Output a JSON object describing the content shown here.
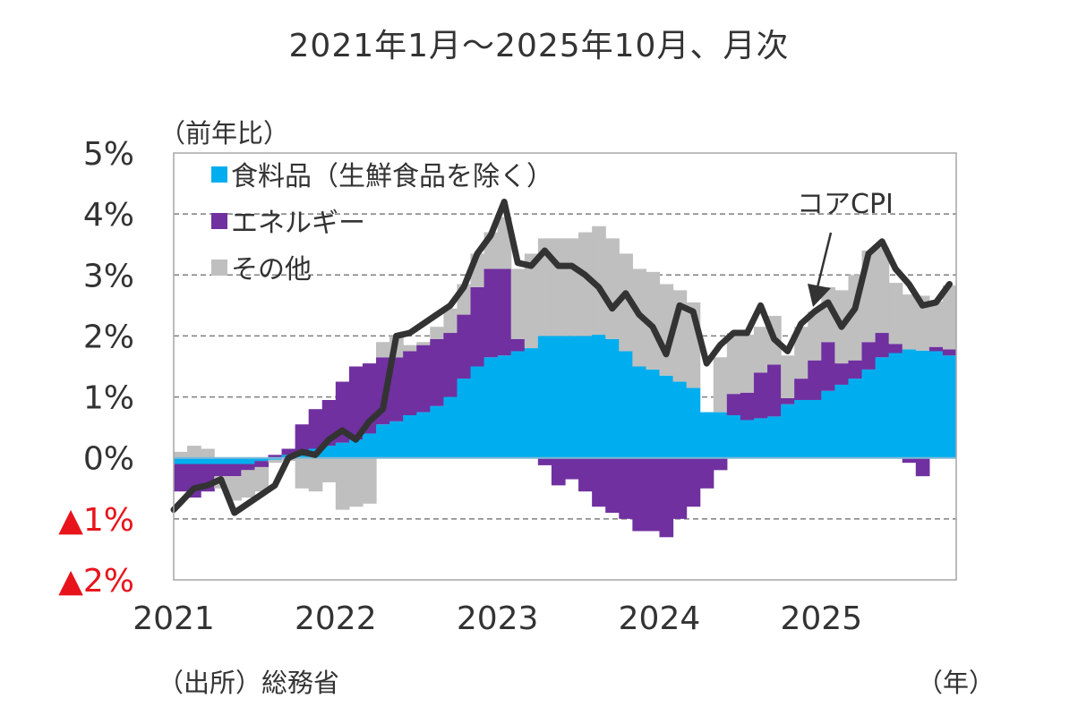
{
  "title": "2021年1月～2025年10月、月次",
  "y_unit_label": "（前年比）",
  "source_label": "（出所）総務省",
  "x_unit_label": "（年）",
  "colors": {
    "food": "#00aeef",
    "energy": "#7030a0",
    "other": "#bfbfbf",
    "core_cpi": "#333333",
    "negative_tick": "#e8141c",
    "grid": "#7f7f7f"
  },
  "chart_data": {
    "type": "bar",
    "stacked": true,
    "title": "2021年1月～2025年10月、月次",
    "xlabel": "（年）",
    "ylabel": "（前年比）",
    "ylim": [
      -2,
      5
    ],
    "grid": true,
    "legend_position": "top-left",
    "y_ticks": [
      {
        "value": 5,
        "label": "5%"
      },
      {
        "value": 4,
        "label": "4%"
      },
      {
        "value": 3,
        "label": "3%"
      },
      {
        "value": 2,
        "label": "2%"
      },
      {
        "value": 1,
        "label": "1%"
      },
      {
        "value": 0,
        "label": "0%"
      },
      {
        "value": -1,
        "label": "▲1%"
      },
      {
        "value": -2,
        "label": "▲2%"
      }
    ],
    "x_ticks": [
      {
        "index": 0,
        "label": "2021"
      },
      {
        "index": 12,
        "label": "2022"
      },
      {
        "index": 24,
        "label": "2023"
      },
      {
        "index": 36,
        "label": "2024"
      },
      {
        "index": 48,
        "label": "2025"
      }
    ],
    "months": 58,
    "series": [
      {
        "name": "食料品（生鮮食品を除く）",
        "key": "food",
        "kind": "bar",
        "values": [
          -0.1,
          -0.1,
          -0.1,
          -0.1,
          -0.1,
          -0.1,
          -0.05,
          -0.03,
          0.05,
          0.1,
          0.15,
          0.2,
          0.25,
          0.3,
          0.4,
          0.55,
          0.6,
          0.7,
          0.75,
          0.85,
          1.0,
          1.3,
          1.5,
          1.65,
          1.68,
          1.75,
          1.8,
          2.0,
          2.0,
          2.0,
          2.0,
          2.02,
          1.95,
          1.75,
          1.5,
          1.45,
          1.35,
          1.25,
          1.15,
          0.75,
          0.75,
          0.7,
          0.62,
          0.65,
          0.68,
          0.88,
          0.95,
          0.95,
          1.1,
          1.2,
          1.3,
          1.45,
          1.65,
          1.72,
          1.78,
          1.76,
          1.75,
          1.68
        ]
      },
      {
        "name": "エネルギー",
        "key": "energy",
        "kind": "bar",
        "values": [
          -0.45,
          -0.55,
          -0.45,
          -0.2,
          -0.2,
          -0.1,
          -0.1,
          0.05,
          0.1,
          0.45,
          0.65,
          0.75,
          1.0,
          1.2,
          1.15,
          1.1,
          1.05,
          1.05,
          1.1,
          1.1,
          1.05,
          1.05,
          1.3,
          1.45,
          1.42,
          0.2,
          -0.0,
          -0.12,
          -0.45,
          -0.35,
          -0.55,
          -0.8,
          -0.9,
          -1.0,
          -1.2,
          -1.2,
          -1.3,
          -1.0,
          -0.8,
          -0.5,
          -0.2,
          0.35,
          0.45,
          0.75,
          0.85,
          0.1,
          0.35,
          0.65,
          0.8,
          0.35,
          0.3,
          0.45,
          0.4,
          0.15,
          -0.08,
          -0.3,
          0.07,
          0.1
        ]
      },
      {
        "name": "その他",
        "key": "other",
        "kind": "bar",
        "values": [
          0.1,
          0.2,
          0.15,
          -0.2,
          -0.4,
          -0.45,
          -0.4,
          -0.05,
          -0.05,
          -0.5,
          -0.55,
          -0.4,
          -0.85,
          -0.8,
          -0.75,
          0.25,
          0.35,
          0.1,
          0.05,
          0.2,
          0.4,
          0.5,
          0.55,
          0.6,
          0.85,
          1.15,
          1.55,
          1.6,
          1.6,
          1.6,
          1.7,
          1.78,
          1.65,
          1.6,
          1.6,
          1.6,
          1.5,
          1.5,
          1.4,
          0.0,
          0.9,
          1.0,
          0.95,
          0.75,
          0.8,
          0.7,
          0.85,
          0.8,
          0.9,
          1.2,
          1.4,
          1.5,
          1.4,
          1.0,
          0.9,
          0.9,
          0.75,
          1.05
        ]
      },
      {
        "name": "コアCPI",
        "key": "core_cpi",
        "kind": "line",
        "values": [
          -0.85,
          -0.5,
          -0.45,
          -0.35,
          -0.9,
          -0.75,
          -0.6,
          -0.45,
          0.0,
          0.1,
          0.05,
          0.3,
          0.45,
          0.3,
          0.6,
          0.8,
          2.0,
          2.05,
          2.2,
          2.35,
          2.5,
          2.8,
          3.35,
          3.65,
          4.2,
          3.2,
          3.15,
          3.4,
          3.15,
          3.15,
          3.0,
          2.8,
          2.45,
          2.7,
          2.35,
          2.15,
          1.7,
          2.5,
          2.4,
          1.55,
          1.85,
          2.05,
          2.05,
          2.5,
          1.95,
          1.75,
          2.2,
          2.4,
          2.55,
          2.15,
          2.45,
          3.35,
          3.55,
          3.1,
          2.85,
          2.5,
          2.55,
          2.85
        ]
      }
    ],
    "annotations": [
      {
        "text": "コアCPI",
        "target_index": 47
      }
    ]
  },
  "legend": [
    {
      "key": "food",
      "label": "食料品（生鮮食品を除く）"
    },
    {
      "key": "energy",
      "label": "エネルギー"
    },
    {
      "key": "other",
      "label": "その他"
    }
  ]
}
